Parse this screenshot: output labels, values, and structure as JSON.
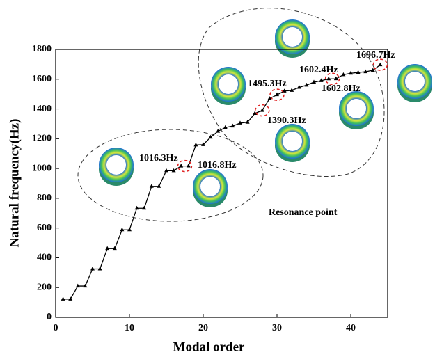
{
  "chart_data": {
    "type": "line",
    "x_label": "Modal order",
    "y_label": "Natural frequency(Hz)",
    "x": [
      1,
      2,
      3,
      4,
      5,
      6,
      7,
      8,
      9,
      10,
      11,
      12,
      13,
      14,
      15,
      16,
      17,
      18,
      19,
      20,
      21,
      22,
      23,
      24,
      25,
      26,
      27,
      28,
      29,
      30,
      31,
      32,
      33,
      34,
      35,
      36,
      37,
      38,
      39,
      40,
      41,
      42,
      43,
      44
    ],
    "values": [
      122,
      122,
      210,
      210,
      325,
      325,
      462,
      462,
      588,
      588,
      733,
      733,
      880,
      880,
      985,
      985,
      1016.3,
      1016.8,
      1158,
      1160,
      1210,
      1250,
      1275,
      1285,
      1305,
      1310,
      1370,
      1390.3,
      1470,
      1495.3,
      1520,
      1525,
      1545,
      1560,
      1580,
      1590,
      1602.4,
      1602.8,
      1630,
      1640,
      1645,
      1650,
      1660,
      1696.7
    ],
    "color": "#000000",
    "xlim": [
      0,
      45
    ],
    "xticks": [
      0,
      10,
      20,
      30,
      40
    ],
    "ylim": [
      0,
      1800
    ],
    "yticks": [
      0,
      200,
      400,
      600,
      800,
      1000,
      1200,
      1400,
      1600,
      1800
    ],
    "annotations": [
      "1016.3Hz",
      "1016.8Hz",
      "1390.3Hz",
      "1495.3Hz",
      "1602.4Hz",
      "1602.8Hz",
      "1696.7Hz",
      "Resonance point"
    ]
  }
}
